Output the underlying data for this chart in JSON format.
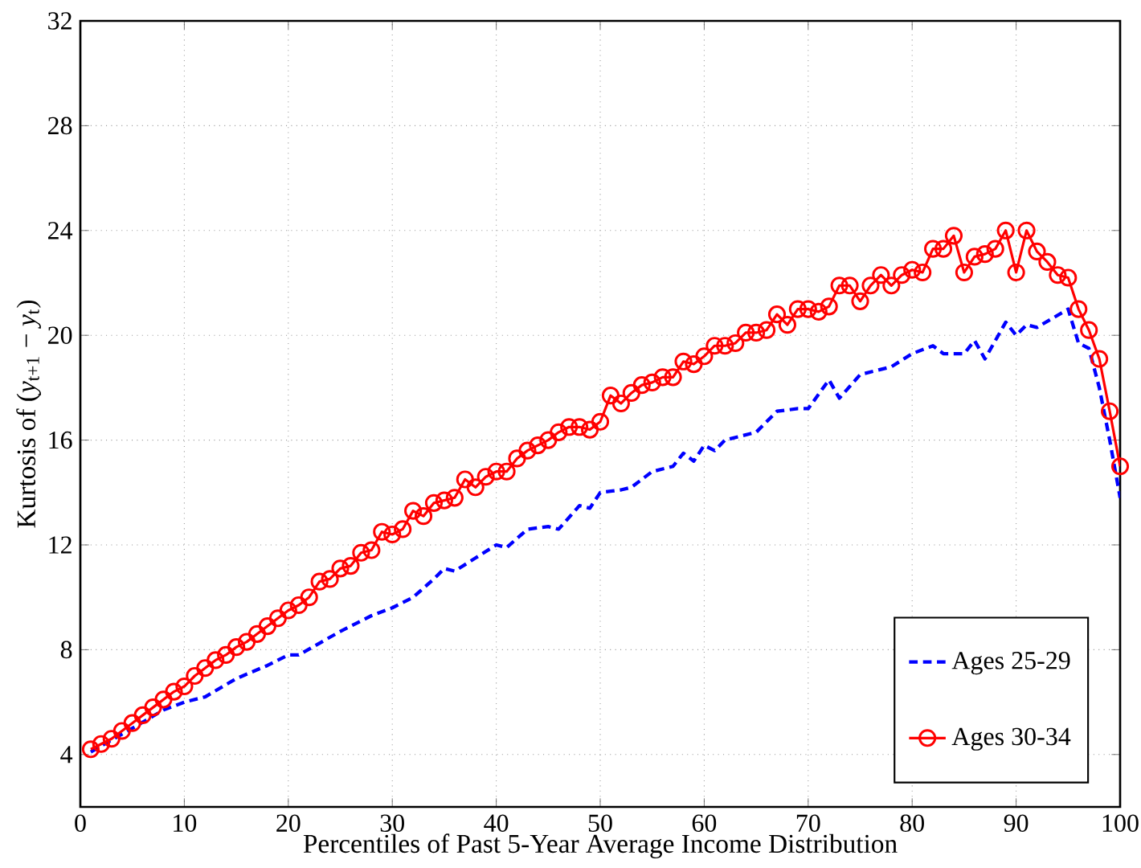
{
  "chart_data": {
    "type": "line",
    "xlabel": "Percentiles of Past 5-Year Average Income Distribution",
    "ylabel": "Kurtosis of (*y*$_{t+1}$ − *y*$_{t}$)",
    "xlim": [
      0,
      100
    ],
    "xticks": [
      0,
      10,
      20,
      30,
      40,
      50,
      60,
      70,
      80,
      90,
      100
    ],
    "ylim": [
      2,
      32
    ],
    "yticks": [
      4,
      8,
      12,
      16,
      20,
      24,
      28,
      32
    ],
    "grid": true,
    "legend": "bottom right",
    "series": [
      {
        "name": "Ages 25-29",
        "color": "#0000ff",
        "line_style": "dashed",
        "marker": "none",
        "x": [
          1,
          5,
          8,
          10,
          12,
          15,
          18,
          20,
          21,
          25,
          28,
          30,
          32,
          34,
          35,
          36,
          38,
          40,
          41,
          43,
          45,
          46,
          48,
          49,
          50,
          52,
          53,
          55,
          57,
          58,
          59,
          60,
          61,
          62,
          65,
          67,
          69,
          70,
          72,
          73,
          75,
          78,
          80,
          82,
          83,
          85,
          86,
          87,
          89,
          90,
          91,
          92,
          95,
          96,
          97,
          98,
          99,
          100
        ],
        "values": [
          4.1,
          5.0,
          5.7,
          6.0,
          6.2,
          6.9,
          7.4,
          7.8,
          7.8,
          8.7,
          9.3,
          9.6,
          10.0,
          10.7,
          11.1,
          11.0,
          11.5,
          12.0,
          11.9,
          12.6,
          12.7,
          12.6,
          13.5,
          13.4,
          14.0,
          14.1,
          14.2,
          14.8,
          15.0,
          15.5,
          15.2,
          15.8,
          15.6,
          16.0,
          16.3,
          17.1,
          17.2,
          17.2,
          18.3,
          17.6,
          18.5,
          18.8,
          19.3,
          19.6,
          19.3,
          19.3,
          19.8,
          19.1,
          20.5,
          20.0,
          20.4,
          20.3,
          21.0,
          19.7,
          19.5,
          18.0,
          16.0,
          13.8
        ]
      },
      {
        "name": "Ages 30-34",
        "color": "#ff0000",
        "line_style": "solid",
        "marker": "circle",
        "x": [
          1,
          2,
          3,
          4,
          5,
          6,
          7,
          8,
          9,
          10,
          11,
          12,
          13,
          14,
          15,
          16,
          17,
          18,
          19,
          20,
          21,
          22,
          23,
          24,
          25,
          26,
          27,
          28,
          29,
          30,
          31,
          32,
          33,
          34,
          35,
          36,
          37,
          38,
          39,
          40,
          41,
          42,
          43,
          44,
          45,
          46,
          47,
          48,
          49,
          50,
          51,
          52,
          53,
          54,
          55,
          56,
          57,
          58,
          59,
          60,
          61,
          62,
          63,
          64,
          65,
          66,
          67,
          68,
          69,
          70,
          71,
          72,
          73,
          74,
          75,
          76,
          77,
          78,
          79,
          80,
          81,
          82,
          83,
          84,
          85,
          86,
          87,
          88,
          89,
          90,
          91,
          92,
          93,
          94,
          95,
          96,
          97,
          98,
          99,
          100
        ],
        "values": [
          4.2,
          4.4,
          4.6,
          4.9,
          5.2,
          5.5,
          5.8,
          6.1,
          6.4,
          6.6,
          7.0,
          7.3,
          7.6,
          7.8,
          8.1,
          8.3,
          8.6,
          8.9,
          9.2,
          9.5,
          9.7,
          10.0,
          10.6,
          10.7,
          11.1,
          11.2,
          11.7,
          11.8,
          12.5,
          12.4,
          12.6,
          13.3,
          13.1,
          13.6,
          13.7,
          13.8,
          14.5,
          14.2,
          14.6,
          14.8,
          14.8,
          15.3,
          15.6,
          15.8,
          16.0,
          16.3,
          16.5,
          16.5,
          16.4,
          16.7,
          17.7,
          17.4,
          17.8,
          18.1,
          18.2,
          18.4,
          18.4,
          19.0,
          18.9,
          19.2,
          19.6,
          19.6,
          19.7,
          20.1,
          20.1,
          20.2,
          20.8,
          20.4,
          21.0,
          21.0,
          20.9,
          21.1,
          21.9,
          21.9,
          21.3,
          21.9,
          22.3,
          21.9,
          22.3,
          22.5,
          22.4,
          23.3,
          23.3,
          23.8,
          22.4,
          23.0,
          23.1,
          23.3,
          24.0,
          22.4,
          24.0,
          23.2,
          22.8,
          22.3,
          22.2,
          21.0,
          20.2,
          19.1,
          17.1,
          15.0
        ]
      }
    ]
  }
}
